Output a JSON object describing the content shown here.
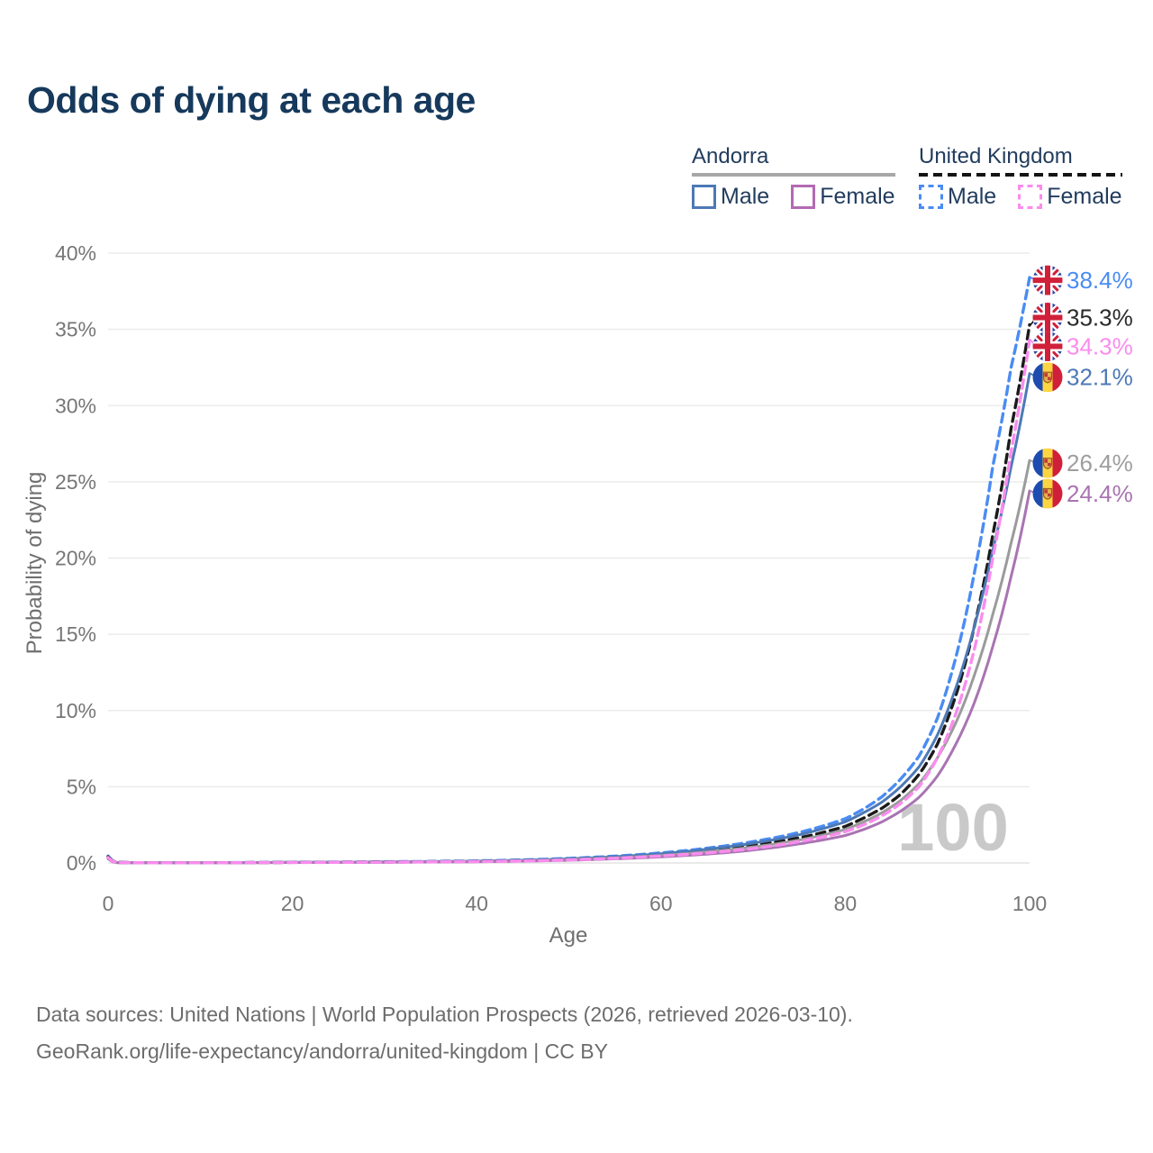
{
  "title": "Odds of dying at each age",
  "legend": {
    "groups": [
      {
        "name": "Andorra",
        "underline_style": "solid",
        "underline_color": "#a7a7a7",
        "items": [
          {
            "label": "Male",
            "color": "#4d79b6",
            "dashed": false
          },
          {
            "label": "Female",
            "color": "#b36ab3",
            "dashed": false
          }
        ]
      },
      {
        "name": "United Kingdom",
        "underline_style": "dashed",
        "underline_color": "#141414",
        "items": [
          {
            "label": "Male",
            "color": "#4a8cf2",
            "dashed": true
          },
          {
            "label": "Female",
            "color": "#fa8cee",
            "dashed": true
          }
        ]
      }
    ]
  },
  "chart": {
    "watermark": "100",
    "x_axis": {
      "title": "Age",
      "min": 0,
      "max": 100,
      "tick_values": [
        0,
        20,
        40,
        60,
        80,
        100
      ]
    },
    "y_axis": {
      "title": "Probability of dying",
      "min": 0,
      "max": 40,
      "tick_labels": [
        "0%",
        "5%",
        "10%",
        "15%",
        "20%",
        "25%",
        "30%",
        "35%",
        "40%"
      ],
      "tick_values": [
        0,
        5,
        10,
        15,
        20,
        25,
        30,
        35,
        40
      ]
    },
    "colors": {
      "gridline": "#ebebeb",
      "tick_text": "#767676",
      "axis_title_text": "#6f6f6f",
      "watermark": "#c9c9c9"
    }
  },
  "chart_data": {
    "type": "line",
    "title": "Odds of dying at each age",
    "xlabel": "Age",
    "ylabel": "Probability of dying",
    "xlim": [
      0,
      100
    ],
    "ylim": [
      0,
      40
    ],
    "y_unit": "percent",
    "grid": "horizontal",
    "legend_position": "top-right",
    "knot_ages": [
      0,
      1,
      5,
      10,
      15,
      20,
      25,
      30,
      35,
      40,
      45,
      50,
      55,
      60,
      65,
      70,
      75,
      80,
      82,
      84,
      86,
      88,
      90,
      92,
      94,
      96,
      98,
      100
    ],
    "series": [
      {
        "id": "uk-male",
        "name": "United Kingdom — Male",
        "flag": "uk",
        "color": "#4a8cf2",
        "dashed": true,
        "end_label": "38.4%",
        "label_color": "#4a8cf2",
        "label_dy": 3,
        "values": [
          0.45,
          0.04,
          0.01,
          0.01,
          0.03,
          0.05,
          0.06,
          0.08,
          0.1,
          0.14,
          0.2,
          0.3,
          0.45,
          0.66,
          0.97,
          1.4,
          2.0,
          2.9,
          3.55,
          4.35,
          5.5,
          7.0,
          9.5,
          13.5,
          19.0,
          26.0,
          32.5,
          38.4
        ]
      },
      {
        "id": "uk-total",
        "name": "United Kingdom — Both sexes",
        "flag": "uk",
        "color": "#1b1b1b",
        "dashed": true,
        "end_label": "35.3%",
        "label_color": "#2a2a2a",
        "label_dy": -8,
        "values": [
          0.4,
          0.035,
          0.01,
          0.01,
          0.02,
          0.04,
          0.05,
          0.06,
          0.08,
          0.11,
          0.16,
          0.25,
          0.38,
          0.55,
          0.8,
          1.15,
          1.65,
          2.4,
          2.95,
          3.6,
          4.5,
          5.8,
          7.8,
          11.0,
          15.5,
          21.5,
          28.5,
          35.3
        ]
      },
      {
        "id": "andorra-male",
        "name": "Andorra — Male",
        "flag": "andorra",
        "color": "#4d79b6",
        "dashed": false,
        "end_label": "32.1%",
        "label_color": "#4d79b6",
        "label_dy": 4,
        "values": [
          0.33,
          0.03,
          0.01,
          0.01,
          0.025,
          0.045,
          0.055,
          0.07,
          0.09,
          0.12,
          0.18,
          0.27,
          0.41,
          0.6,
          0.9,
          1.3,
          1.85,
          2.7,
          3.3,
          4.0,
          5.0,
          6.3,
          8.4,
          11.5,
          15.5,
          20.5,
          26.0,
          32.1
        ]
      },
      {
        "id": "andorra-total",
        "name": "Andorra — Both sexes",
        "flag": "andorra",
        "color": "#9b9b9b",
        "dashed": false,
        "end_label": "26.4%",
        "label_color": "#9e9e9e",
        "label_dy": 3,
        "values": [
          0.3,
          0.025,
          0.01,
          0.01,
          0.02,
          0.035,
          0.045,
          0.055,
          0.07,
          0.1,
          0.14,
          0.22,
          0.33,
          0.49,
          0.72,
          1.05,
          1.5,
          2.2,
          2.7,
          3.3,
          4.1,
          5.2,
          6.9,
          9.2,
          12.3,
          16.3,
          21.0,
          26.4
        ]
      },
      {
        "id": "andorra-female",
        "name": "Andorra — Female",
        "flag": "andorra",
        "color": "#a974b2",
        "dashed": false,
        "end_label": "24.4%",
        "label_color": "#a974b2",
        "label_dy": 3,
        "values": [
          0.27,
          0.02,
          0.008,
          0.008,
          0.015,
          0.03,
          0.04,
          0.05,
          0.06,
          0.08,
          0.12,
          0.18,
          0.27,
          0.4,
          0.58,
          0.85,
          1.25,
          1.8,
          2.2,
          2.7,
          3.4,
          4.3,
          5.7,
          7.8,
          10.5,
          14.2,
          18.8,
          24.4
        ]
      },
      {
        "id": "uk-female",
        "name": "United Kingdom — Female",
        "flag": "uk",
        "color": "#fa8cee",
        "dashed": true,
        "end_label": "34.3%",
        "label_color": "#fa8cee",
        "label_dy": 7,
        "values": [
          0.36,
          0.03,
          0.01,
          0.01,
          0.02,
          0.03,
          0.04,
          0.05,
          0.07,
          0.09,
          0.13,
          0.2,
          0.31,
          0.46,
          0.66,
          0.95,
          1.4,
          2.05,
          2.5,
          3.1,
          3.9,
          5.0,
          6.9,
          9.8,
          14.0,
          20.0,
          27.0,
          34.3
        ]
      }
    ]
  },
  "footer": {
    "line1": "Data sources: United Nations | World Population Prospects (2026, retrieved 2026-03-10).",
    "line2": "GeoRank.org/life-expectancy/andorra/united-kingdom | CC BY"
  }
}
